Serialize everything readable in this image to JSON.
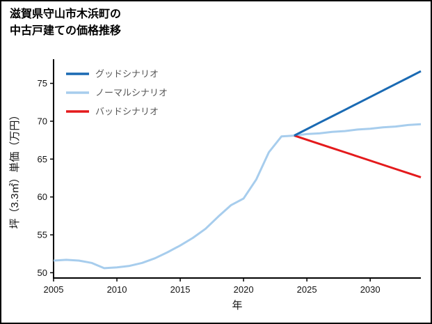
{
  "title": {
    "line1": "滋賀県守山市木浜町の",
    "line2": "中古戸建ての価格推移"
  },
  "chart_data": {
    "type": "line",
    "title": "滋賀県守山市木浜町の中古戸建ての価格推移",
    "xlabel": "年",
    "ylabel": "坪（3.3㎡）単価（万円）",
    "xlim": [
      2005,
      2034
    ],
    "ylim": [
      49.3,
      78.0
    ],
    "xticks": [
      2005,
      2010,
      2015,
      2020,
      2025,
      2030
    ],
    "yticks": [
      50,
      55,
      60,
      65,
      70,
      75
    ],
    "grid": false,
    "legend_position": "upper-left",
    "legend_text_color": "#555555",
    "axis_color": "#000000",
    "series": [
      {
        "name": "グッドシナリオ",
        "color": "#1a6ab3",
        "width": 3,
        "x": [
          2024,
          2025,
          2026,
          2027,
          2028,
          2029,
          2030,
          2031,
          2032,
          2033,
          2034
        ],
        "values": [
          68.1,
          68.95,
          69.8,
          70.65,
          71.5,
          72.35,
          73.2,
          74.05,
          74.9,
          75.75,
          76.6
        ]
      },
      {
        "name": "ノーマルシナリオ",
        "color": "#a7cded",
        "width": 3,
        "x": [
          2005,
          2006,
          2007,
          2008,
          2009,
          2010,
          2011,
          2012,
          2013,
          2014,
          2015,
          2016,
          2017,
          2018,
          2019,
          2020,
          2021,
          2022,
          2023,
          2024,
          2025,
          2026,
          2027,
          2028,
          2029,
          2030,
          2031,
          2032,
          2033,
          2034
        ],
        "values": [
          51.6,
          51.7,
          51.6,
          51.3,
          50.6,
          50.7,
          50.9,
          51.3,
          51.9,
          52.7,
          53.6,
          54.6,
          55.8,
          57.4,
          58.9,
          59.8,
          62.3,
          65.9,
          68.0,
          68.1,
          68.3,
          68.4,
          68.6,
          68.7,
          68.9,
          69.0,
          69.2,
          69.3,
          69.5,
          69.6
        ]
      },
      {
        "name": "バッドシナリオ",
        "color": "#e41a1c",
        "width": 3,
        "x": [
          2024,
          2025,
          2026,
          2027,
          2028,
          2029,
          2030,
          2031,
          2032,
          2033,
          2034
        ],
        "values": [
          68.1,
          67.55,
          67.0,
          66.45,
          65.9,
          65.35,
          64.8,
          64.25,
          63.7,
          63.15,
          62.6
        ]
      }
    ]
  }
}
